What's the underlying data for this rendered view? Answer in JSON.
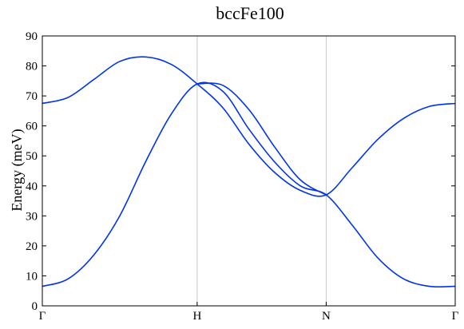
{
  "chart_data": {
    "type": "line",
    "title": "bccFe100",
    "xlabel": "",
    "ylabel": "Energy (meV)",
    "ylim": [
      0,
      90
    ],
    "yticks": [
      0,
      10,
      20,
      30,
      40,
      50,
      60,
      70,
      80,
      90
    ],
    "xlim": [
      0,
      4
    ],
    "x_symmetry_points": [
      {
        "label": "Γ",
        "x": 0
      },
      {
        "label": "H",
        "x": 1.5
      },
      {
        "label": "N",
        "x": 2.75
      },
      {
        "label": "Γ",
        "x": 4
      }
    ],
    "vertical_lines_at": [
      1.5,
      2.75
    ],
    "grid": false,
    "line_color": "#0033ee",
    "series": [
      {
        "x": [
          0,
          0.25,
          0.5,
          0.75,
          1.0,
          1.25,
          1.5,
          1.75,
          2.0,
          2.25,
          2.5,
          2.75,
          3.0,
          3.25,
          3.5,
          3.75,
          4.0
        ],
        "values": [
          67.5,
          69.5,
          75.5,
          81.5,
          83,
          80.5,
          74,
          66,
          54,
          44.5,
          38.5,
          37,
          46,
          55.5,
          62.5,
          66.5,
          67.5
        ]
      },
      {
        "x": [
          0,
          0.25,
          0.5,
          0.75,
          1.0,
          1.25,
          1.5,
          1.75,
          2.0,
          2.25,
          2.5,
          2.75,
          3.0,
          3.25,
          3.5,
          3.75,
          4.0
        ],
        "values": [
          6.5,
          9,
          17,
          30,
          48,
          64,
          74,
          71.5,
          59,
          48,
          40,
          37,
          27,
          16,
          9,
          6.5,
          6.5
        ]
      },
      {
        "x": [
          1.5,
          1.75,
          2.0,
          2.25,
          2.5,
          2.75
        ],
        "values": [
          74,
          73.5,
          65.5,
          53,
          42,
          37
        ]
      }
    ]
  }
}
